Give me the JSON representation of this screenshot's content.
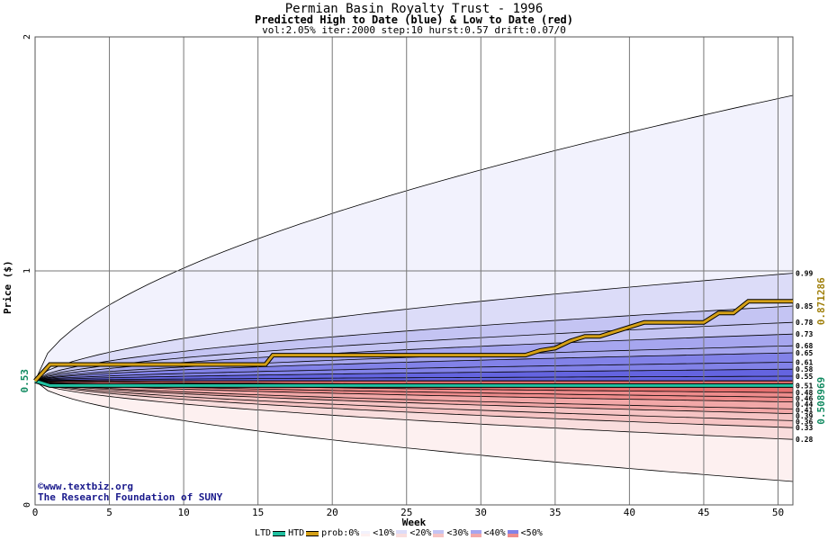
{
  "header": {
    "title": "Permian Basin Royalty Trust - 1996",
    "subtitle": "Predicted High to Date (blue) &  Low to Date (red)",
    "params": "vol:2.05% iter:2000 step:10 hurst:0.57 drift:0.07/0"
  },
  "credits": {
    "line1": "©www.textbiz.org",
    "line2": "The Research Foundation of SUNY"
  },
  "legend": {
    "ltd": "LTD",
    "htd": "HTD",
    "prob": "prob:0%",
    "b10": "<10%",
    "b20": "<20%",
    "b30": "<30%",
    "b40": "<40%",
    "b50": "<50%"
  },
  "chart_data": {
    "type": "area",
    "xlabel": "Week",
    "ylabel": "Price ($)",
    "xlim": [
      0,
      51
    ],
    "ylim": [
      0,
      2
    ],
    "x_ticks": [
      0,
      5,
      10,
      15,
      20,
      25,
      30,
      35,
      40,
      45,
      50
    ],
    "y_ticks": [
      0,
      1,
      2
    ],
    "start_price_label": "0.53",
    "right_labels": [
      "0.99",
      "0.85",
      "0.78",
      "0.73",
      "0.68",
      "0.65",
      "0.61",
      "0.58",
      "0.55",
      "0.51",
      "0.48",
      "0.46",
      "0.44",
      "0.41",
      "0.39",
      "0.36",
      "0.33",
      "0.28"
    ],
    "right_values": [
      0.99,
      0.85,
      0.78,
      0.73,
      0.68,
      0.65,
      0.61,
      0.58,
      0.55,
      0.51,
      0.48,
      0.46,
      0.44,
      0.41,
      0.39,
      0.36,
      0.33,
      0.28
    ],
    "annotations": {
      "high_to_date_value": "0.871286",
      "low_to_date_value": "0.508969"
    },
    "colors": {
      "htd": "#d4a017",
      "ltd": "#20c0a0",
      "b0_blue": "#f2f2fd",
      "b10_blue": "#dcdcf8",
      "b20_blue": "#c4c4f3",
      "b30_blue": "#a6a6ef",
      "b40_blue": "#8282e8",
      "b50_blue": "#6464e0",
      "b0_red": "#fdf0f0",
      "b10_red": "#f9dddd",
      "b20_red": "#f6c4c4",
      "b30_red": "#f2a8a8",
      "b40_red": "#ee8c8c",
      "b50_red": "#e87070",
      "htd_annotation": "#a0800c",
      "ltd_annotation": "#108a60"
    },
    "start_price": 0.53,
    "high_quantiles_at_end": [
      1.75,
      0.99,
      0.85,
      0.78,
      0.73,
      0.68,
      0.65,
      0.61,
      0.58,
      0.55,
      0.53
    ],
    "low_quantiles_at_end": [
      0.53,
      0.51,
      0.48,
      0.46,
      0.44,
      0.41,
      0.39,
      0.36,
      0.33,
      0.28,
      0.1
    ],
    "htd_series": {
      "x": [
        0,
        1,
        15.5,
        16,
        33,
        34,
        35,
        36,
        37,
        38,
        39,
        40,
        41,
        45,
        46,
        47,
        48,
        51
      ],
      "y": [
        0.53,
        0.6,
        0.6,
        0.64,
        0.64,
        0.66,
        0.67,
        0.7,
        0.72,
        0.72,
        0.74,
        0.76,
        0.78,
        0.78,
        0.82,
        0.82,
        0.87,
        0.87
      ]
    },
    "ltd_series": {
      "x": [
        0,
        1,
        51
      ],
      "y": [
        0.53,
        0.51,
        0.51
      ]
    }
  }
}
